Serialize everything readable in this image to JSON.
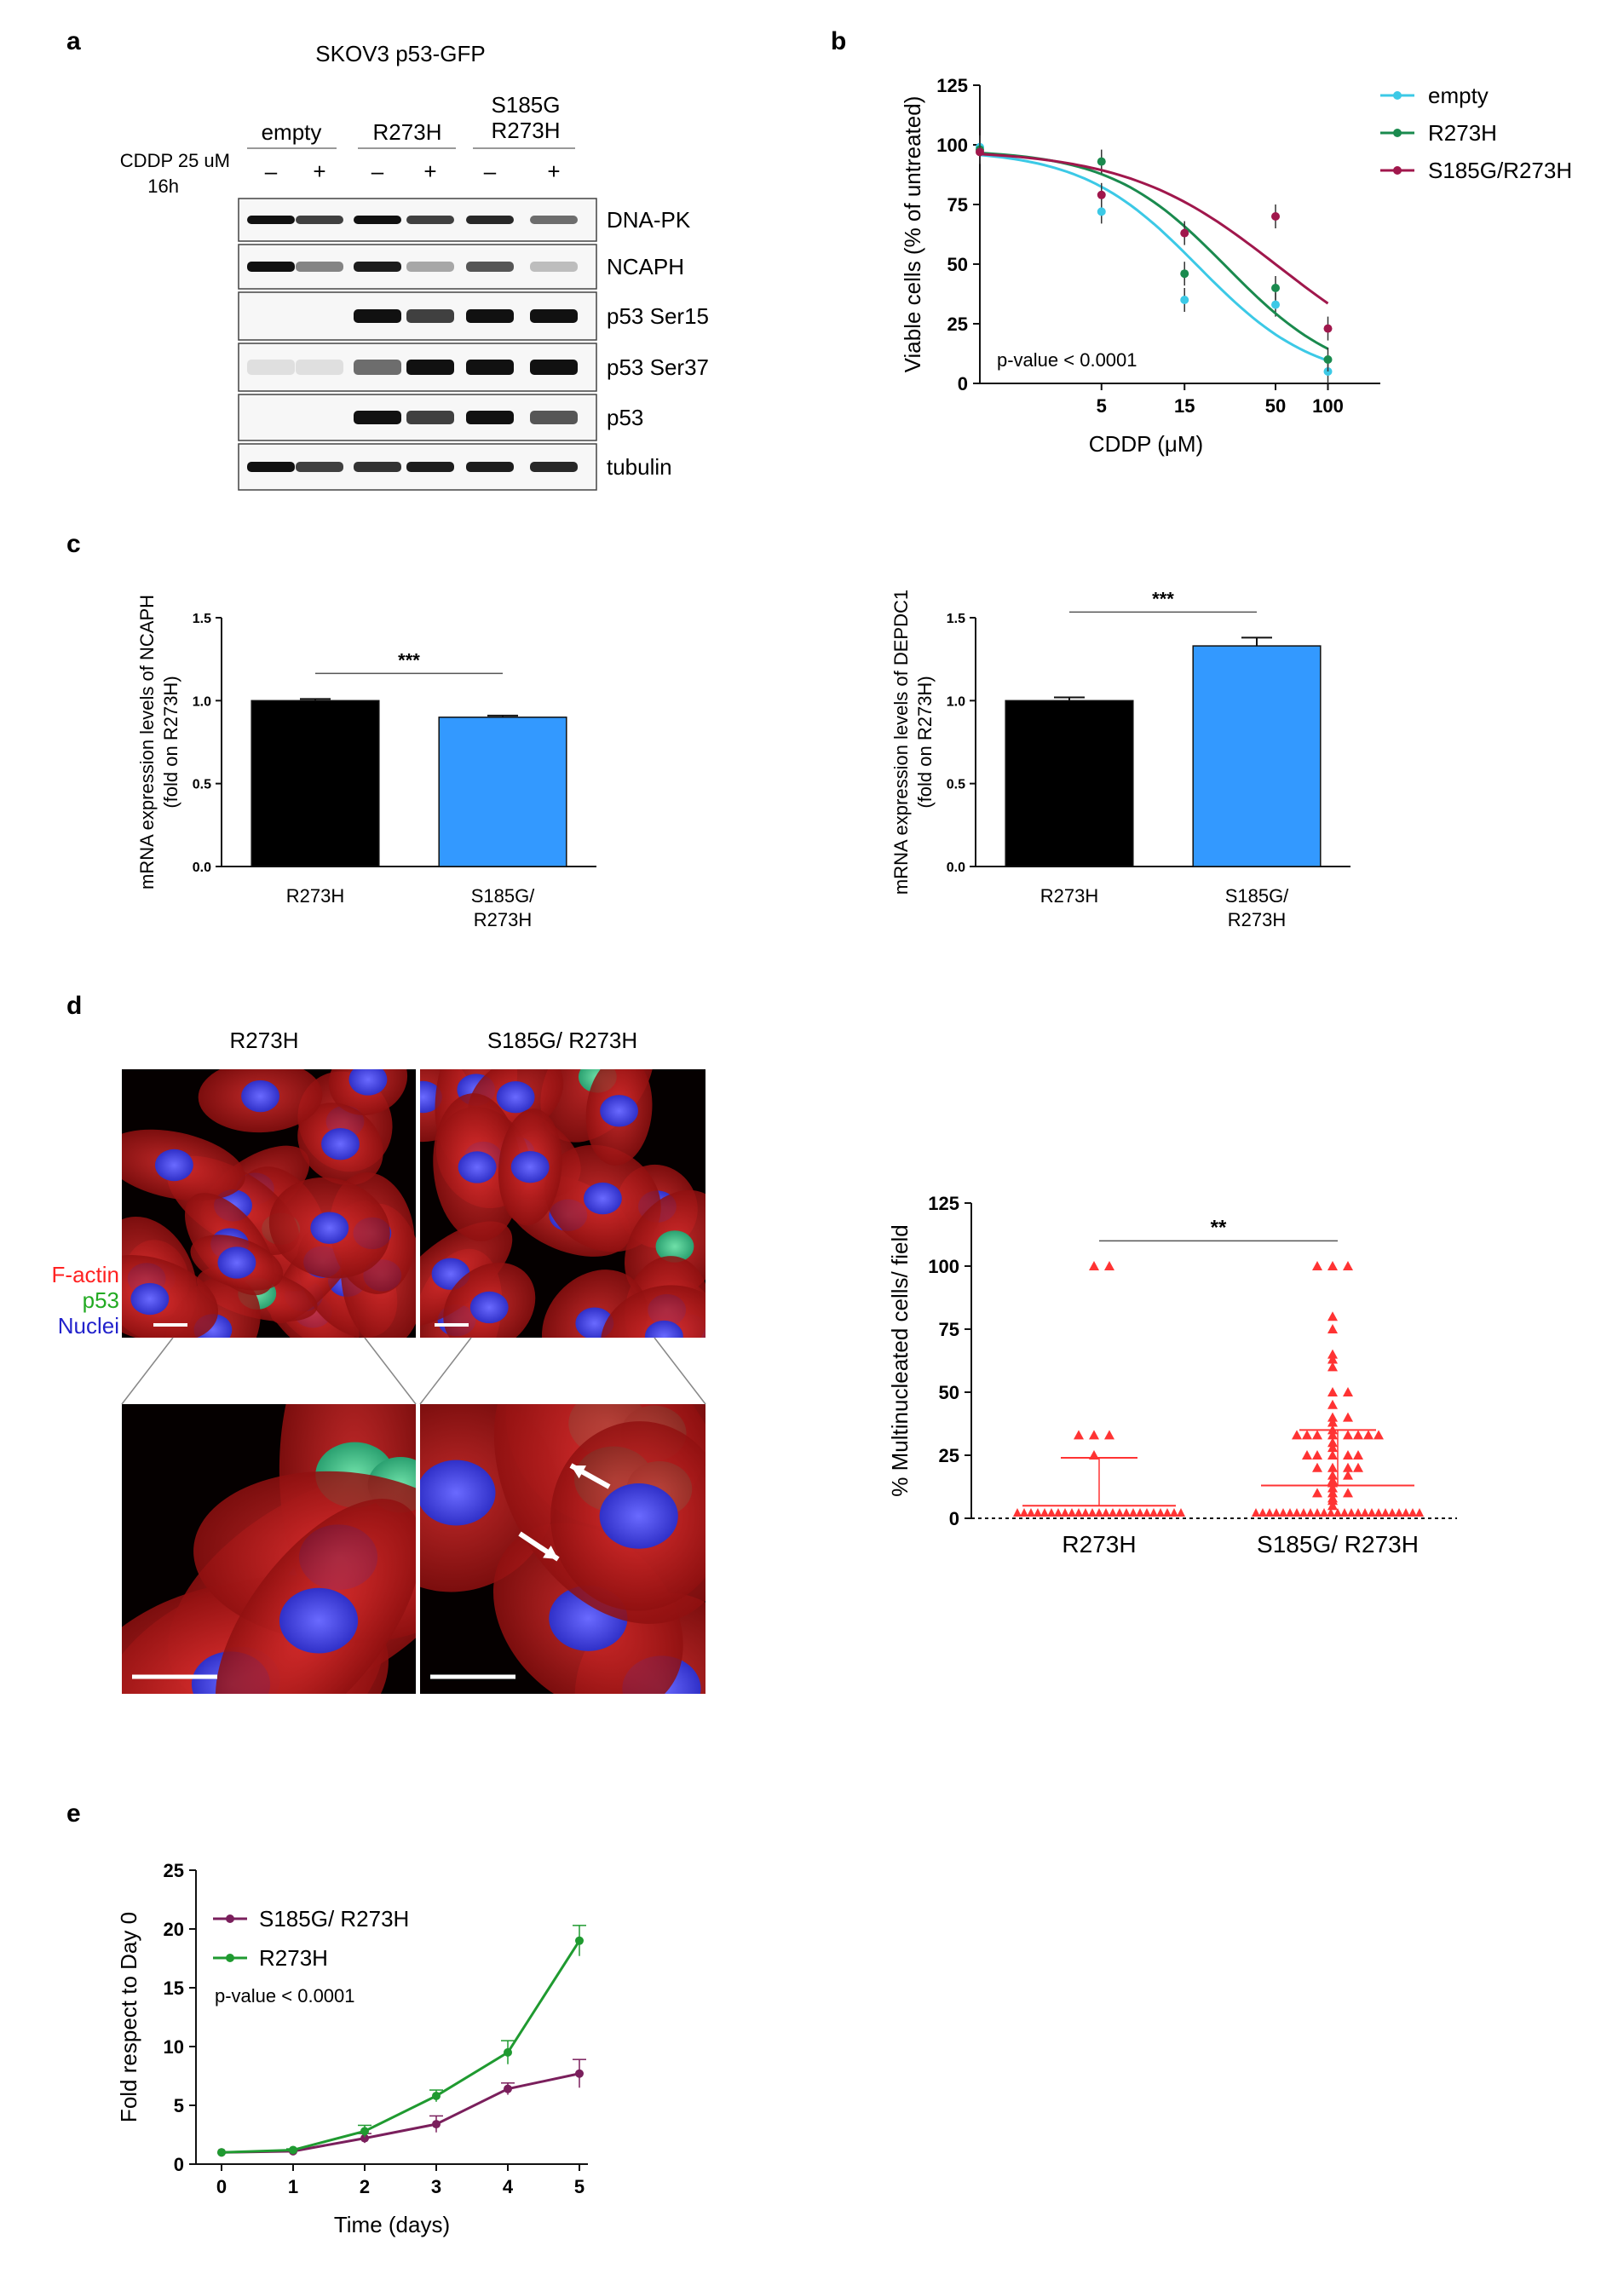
{
  "panel_a": {
    "letter": "a",
    "title": "SKOV3 p53-GFP",
    "groups": [
      "empty",
      "R273H",
      "S185G\nR273H"
    ],
    "treatment_label_1": "CDDP 25 uM",
    "treatment_label_2": "16h",
    "lane_signs": [
      "–",
      "+",
      "–",
      "+",
      "–",
      "+"
    ],
    "blots": [
      "DNA-PK",
      "NCAPH",
      "p53 Ser15",
      "p53 Ser37",
      "p53",
      "tubulin"
    ]
  },
  "panel_b": {
    "letter": "b",
    "annotation": "p-value < 0.0001",
    "chart_data": {
      "type": "line",
      "title": "",
      "xlabel": "CDDP (μM)",
      "ylabel": "Viable cells (% of untreated)",
      "x_scale": "log",
      "x_ticks": [
        5,
        15,
        50,
        100
      ],
      "ylim": [
        0,
        125
      ],
      "y_ticks": [
        0,
        25,
        50,
        75,
        100,
        125
      ],
      "legend_position": "top-right",
      "series": [
        {
          "name": "empty",
          "color": "#3cc9e6",
          "x": [
            1,
            5,
            15,
            50,
            100
          ],
          "y": [
            99,
            72,
            35,
            33,
            5
          ]
        },
        {
          "name": "R273H",
          "color": "#1a8a4e",
          "x": [
            1,
            5,
            15,
            50,
            100
          ],
          "y": [
            98,
            93,
            46,
            40,
            10
          ]
        },
        {
          "name": "S185G/R273H",
          "color": "#a0174c",
          "x": [
            1,
            5,
            15,
            50,
            100
          ],
          "y": [
            97,
            79,
            63,
            70,
            23
          ]
        }
      ]
    }
  },
  "panel_c": {
    "letter": "c",
    "charts": [
      {
        "type": "bar",
        "ylabel_1": "mRNA expression levels of NCAPH",
        "ylabel_2": "(fold on R273H)",
        "categories": [
          "R273H",
          "S185G/\nR273H"
        ],
        "values": [
          1.0,
          0.9
        ],
        "errors": [
          0.01,
          0.01
        ],
        "colors": [
          "#000000",
          "#3399ff"
        ],
        "ylim": [
          0,
          1.5
        ],
        "y_ticks": [
          0.0,
          0.5,
          1.0,
          1.5
        ],
        "significance": "***"
      },
      {
        "type": "bar",
        "ylabel_1": "mRNA expression levels of DEPDC1",
        "ylabel_2": "(fold on R273H)",
        "categories": [
          "R273H",
          "S185G/\nR273H"
        ],
        "values": [
          1.0,
          1.33
        ],
        "errors": [
          0.02,
          0.05
        ],
        "colors": [
          "#000000",
          "#3399ff"
        ],
        "ylim": [
          0,
          1.5
        ],
        "y_ticks": [
          0.0,
          0.5,
          1.0,
          1.5
        ],
        "significance": "***"
      }
    ]
  },
  "panel_d": {
    "letter": "d",
    "image_titles": [
      "R273H",
      "S185G/ R273H"
    ],
    "stain_labels": [
      {
        "text": "F-actin",
        "color": "#ff2222"
      },
      {
        "text": "p53",
        "color": "#22aa22"
      },
      {
        "text": "Nuclei",
        "color": "#2222cc"
      }
    ],
    "chart_data": {
      "type": "scatter",
      "ylabel": "% Multinucleated cells/ field",
      "categories": [
        "R273H",
        "S185G/ R273H"
      ],
      "ylim": [
        0,
        125
      ],
      "y_ticks": [
        0,
        25,
        50,
        75,
        100,
        125
      ],
      "significance": "**",
      "marker_color": "#ff3333",
      "groups": [
        {
          "name": "R273H",
          "mean": 5,
          "sd_upper": 24,
          "points": [
            100,
            100,
            33,
            33,
            33,
            25
          ]
        },
        {
          "name": "S185G/ R273H",
          "mean": 13,
          "sd_upper": 35,
          "points": [
            100,
            100,
            100,
            80,
            75,
            65,
            63,
            60,
            50,
            50,
            45,
            40,
            40,
            38,
            35,
            33,
            33,
            33,
            33,
            33,
            33,
            33,
            33,
            30,
            28,
            25,
            25,
            25,
            25,
            25,
            20,
            20,
            20,
            20,
            17,
            17,
            15,
            14,
            12,
            10,
            10,
            10,
            8,
            7,
            5
          ]
        }
      ]
    }
  },
  "panel_e": {
    "letter": "e",
    "annotation": "p-value < 0.0001",
    "chart_data": {
      "type": "line",
      "xlabel": "Time (days)",
      "ylabel": "Fold respect to Day 0",
      "x": [
        0,
        1,
        2,
        3,
        4,
        5
      ],
      "xlim": [
        0,
        5
      ],
      "ylim": [
        0,
        25
      ],
      "y_ticks": [
        0,
        5,
        10,
        15,
        20,
        25
      ],
      "legend_position": "top-left",
      "series": [
        {
          "name": "S185G/ R273H",
          "color": "#7a1f5c",
          "y": [
            1,
            1.1,
            2.2,
            3.4,
            6.4,
            7.7
          ],
          "err": [
            0,
            0.1,
            0.4,
            0.7,
            0.5,
            1.2
          ]
        },
        {
          "name": "R273H",
          "color": "#1f9a30",
          "y": [
            1,
            1.2,
            2.8,
            5.8,
            9.5,
            19
          ],
          "err": [
            0,
            0.1,
            0.5,
            0.5,
            1.0,
            1.3
          ]
        }
      ]
    }
  }
}
